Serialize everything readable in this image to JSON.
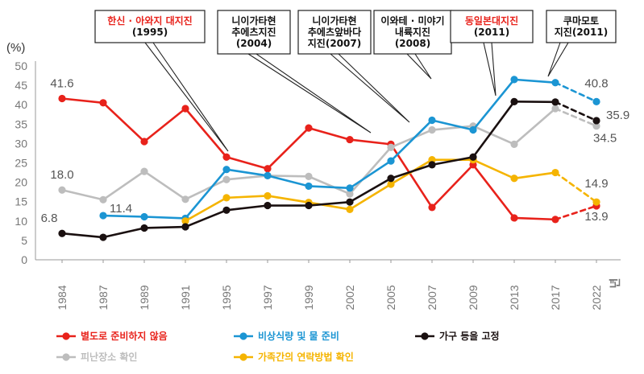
{
  "chart_data": {
    "type": "line",
    "unit_label": "(%)",
    "x_unit": "년",
    "categories": [
      "1984",
      "1987",
      "1989",
      "1991",
      "1995",
      "1997",
      "1999",
      "2002",
      "2005",
      "2007",
      "2009",
      "2013",
      "2017",
      "2022"
    ],
    "ylim": [
      0,
      50
    ],
    "yticks": [
      0,
      5,
      10,
      15,
      20,
      25,
      30,
      35,
      40,
      45,
      50
    ],
    "grid": false,
    "legend_position": "bottom",
    "dashed_last_segment": true,
    "series": [
      {
        "name": "별도로 준비하지 않음",
        "color": "#e8221b",
        "values": [
          41.6,
          40.5,
          30.5,
          39.0,
          26.5,
          23.5,
          34.0,
          31.0,
          29.8,
          13.5,
          24.5,
          10.8,
          10.4,
          13.9
        ]
      },
      {
        "name": "피난장소 확인",
        "color": "#bdbdbd",
        "values": [
          18.0,
          15.5,
          22.8,
          15.6,
          20.7,
          21.7,
          21.5,
          17.0,
          29.0,
          33.5,
          34.5,
          29.8,
          39.0,
          34.5
        ]
      },
      {
        "name": "비상식량 및 물 준비",
        "color": "#1b95d3",
        "values": [
          null,
          11.4,
          11.1,
          10.7,
          23.3,
          21.7,
          19.0,
          18.5,
          25.5,
          36.0,
          33.5,
          46.5,
          45.7,
          40.8
        ]
      },
      {
        "name": "가족간의 연락방법 확인",
        "color": "#f5b400",
        "values": [
          null,
          null,
          null,
          10.0,
          16.0,
          16.5,
          14.8,
          13.0,
          19.5,
          25.8,
          25.8,
          21.0,
          22.5,
          14.9
        ]
      },
      {
        "name": "가구 등을 고정",
        "color": "#1a1010",
        "values": [
          6.8,
          5.8,
          8.2,
          8.5,
          12.8,
          14.0,
          14.0,
          14.9,
          21.0,
          24.5,
          26.5,
          40.8,
          40.7,
          35.9
        ]
      }
    ],
    "data_labels": [
      {
        "text": "41.6",
        "series": 0,
        "index": 0
      },
      {
        "text": "18.0",
        "series": 1,
        "index": 0
      },
      {
        "text": "11.4",
        "series": 2,
        "index": 1
      },
      {
        "text": "6.8",
        "series": 4,
        "index": 0
      },
      {
        "text": "40.8",
        "series": 2,
        "index": 13
      },
      {
        "text": "35.9",
        "series": 4,
        "index": 13
      },
      {
        "text": "34.5",
        "series": 1,
        "index": 13
      },
      {
        "text": "14.9",
        "series": 3,
        "index": 13
      },
      {
        "text": "13.9",
        "series": 0,
        "index": 13
      }
    ],
    "annotations": [
      {
        "lines": [
          "한신 · 아와지 대지진",
          "(1995)"
        ],
        "highlight_first_line": true,
        "target_index": 4
      },
      {
        "lines": [
          "니이가타현",
          "추에츠지진",
          "(2004)"
        ],
        "highlight_first_line": false,
        "target_index": 7
      },
      {
        "lines": [
          "니이가타현",
          "추에츠앞바다",
          "지진(2007)"
        ],
        "highlight_first_line": false,
        "target_index": 8
      },
      {
        "lines": [
          "이와테 · 미야기",
          "내륙지진",
          "(2008)"
        ],
        "highlight_first_line": false,
        "target_index": 9
      },
      {
        "lines": [
          "동일본대지진",
          "(2011)"
        ],
        "highlight_first_line": true,
        "target_index": 10
      },
      {
        "lines": [
          "쿠마모토",
          "지진(2011)"
        ],
        "highlight_first_line": false,
        "target_index": 12
      }
    ]
  }
}
